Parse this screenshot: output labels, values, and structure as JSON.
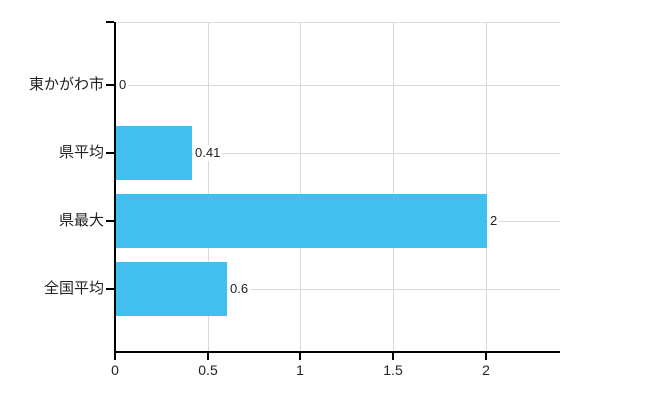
{
  "page": {
    "background": "#ffffff"
  },
  "chart_data": {
    "type": "bar",
    "orientation": "horizontal",
    "title": "",
    "xlabel": "",
    "ylabel": "",
    "categories": [
      "東かがわ市",
      "県平均",
      "県最大",
      "全国平均"
    ],
    "values": [
      0,
      0.41,
      2,
      0.6
    ],
    "value_labels": [
      "0",
      "0.41",
      "2",
      "0.6"
    ],
    "x_ticks": [
      0,
      0.5,
      1,
      1.5,
      2
    ],
    "x_tick_labels": [
      "0",
      "0.5",
      "1",
      "1.5",
      "2"
    ],
    "xlim": [
      0,
      2.4
    ],
    "grid": true,
    "legend": false,
    "colors": {
      "bar": "#41bfef",
      "axis": "#000000",
      "grid": "#d9d9d9",
      "text": "#222222"
    }
  }
}
